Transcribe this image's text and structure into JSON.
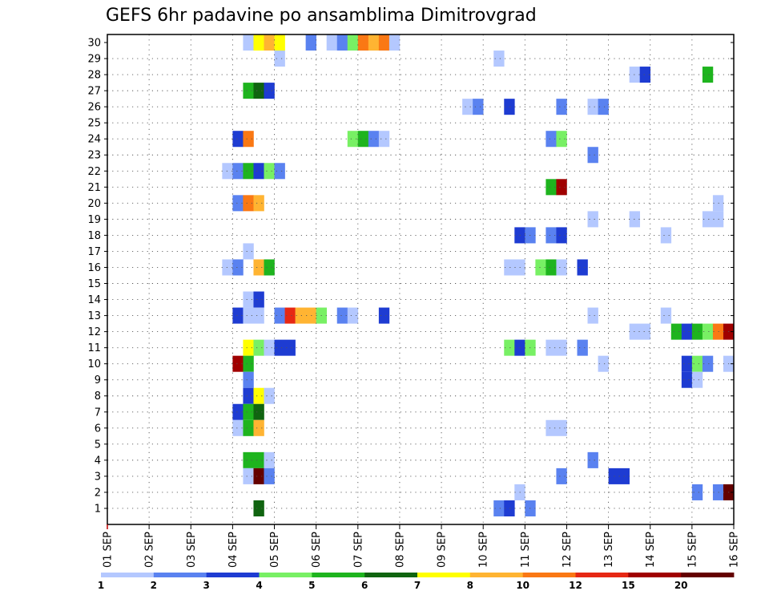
{
  "chart_data": {
    "type": "heatmap",
    "title": "GEFS 6hr padavine po ansamblima Dimitrovgrad",
    "xlabel": "",
    "ylabel": "",
    "x_ticks": [
      "01 SEP",
      "02 SEP",
      "03 SEP",
      "04 SEP",
      "05 SEP",
      "06 SEP",
      "07 SEP",
      "08 SEP",
      "09 SEP",
      "10 SEP",
      "11 SEP",
      "12 SEP",
      "13 SEP",
      "14 SEP",
      "15 SEP",
      "16 SEP"
    ],
    "y_ticks": [
      "1",
      "2",
      "3",
      "4",
      "5",
      "6",
      "7",
      "8",
      "9",
      "10",
      "11",
      "12",
      "13",
      "14",
      "15",
      "16",
      "17",
      "18",
      "19",
      "20",
      "21",
      "22",
      "23",
      "24",
      "25",
      "26",
      "27",
      "28",
      "29",
      "30"
    ],
    "grid": true,
    "legend_placement": "bottom",
    "colorbar": {
      "labels": [
        "1",
        "2",
        "3",
        "4",
        "5",
        "6",
        "7",
        "8",
        "10",
        "12",
        "15",
        "20"
      ],
      "colors": [
        "#b4c8ff",
        "#5a82f0",
        "#1e3cd2",
        "#78f064",
        "#1eb41e",
        "#106410",
        "#ffff00",
        "#ffb432",
        "#fa7814",
        "#e62814",
        "#a00000",
        "#640000"
      ]
    },
    "cells": [
      {
        "ensemble": 30,
        "day": 4.25,
        "days": 1,
        "level": 1
      },
      {
        "ensemble": 30,
        "day": 4.5,
        "days": 1,
        "level": 7
      },
      {
        "ensemble": 30,
        "day": 4.75,
        "days": 1,
        "level": 8
      },
      {
        "ensemble": 30,
        "day": 5.0,
        "days": 1,
        "level": 7
      },
      {
        "ensemble": 30,
        "day": 5.75,
        "days": 1,
        "level": 2
      },
      {
        "ensemble": 30,
        "day": 6.25,
        "days": 1,
        "level": 1
      },
      {
        "ensemble": 30,
        "day": 6.5,
        "days": 1,
        "level": 2
      },
      {
        "ensemble": 30,
        "day": 6.75,
        "days": 1,
        "level": 4
      },
      {
        "ensemble": 30,
        "day": 7.0,
        "days": 1,
        "level": 9
      },
      {
        "ensemble": 30,
        "day": 7.25,
        "days": 1,
        "level": 8
      },
      {
        "ensemble": 30,
        "day": 7.5,
        "days": 1,
        "level": 9
      },
      {
        "ensemble": 30,
        "day": 7.75,
        "days": 1,
        "level": 1
      },
      {
        "ensemble": 29,
        "day": 5.0,
        "days": 1,
        "level": 1
      },
      {
        "ensemble": 29,
        "day": 10.25,
        "days": 1,
        "level": 1
      },
      {
        "ensemble": 28,
        "day": 13.5,
        "days": 1,
        "level": 1
      },
      {
        "ensemble": 28,
        "day": 13.75,
        "days": 1,
        "level": 3
      },
      {
        "ensemble": 28,
        "day": 15.25,
        "days": 1,
        "level": 5
      },
      {
        "ensemble": 27,
        "day": 4.25,
        "days": 1,
        "level": 5
      },
      {
        "ensemble": 27,
        "day": 4.5,
        "days": 1,
        "level": 6
      },
      {
        "ensemble": 27,
        "day": 4.75,
        "days": 1,
        "level": 3
      },
      {
        "ensemble": 26,
        "day": 9.5,
        "days": 1,
        "level": 1
      },
      {
        "ensemble": 26,
        "day": 9.75,
        "days": 1,
        "level": 2
      },
      {
        "ensemble": 26,
        "day": 10.5,
        "days": 1,
        "level": 3
      },
      {
        "ensemble": 26,
        "day": 11.75,
        "days": 1,
        "level": 2
      },
      {
        "ensemble": 26,
        "day": 12.5,
        "days": 1,
        "level": 1
      },
      {
        "ensemble": 26,
        "day": 12.75,
        "days": 1,
        "level": 2
      },
      {
        "ensemble": 24,
        "day": 4.0,
        "days": 1,
        "level": 3
      },
      {
        "ensemble": 24,
        "day": 4.25,
        "days": 1,
        "level": 9
      },
      {
        "ensemble": 24,
        "day": 6.75,
        "days": 1,
        "level": 4
      },
      {
        "ensemble": 24,
        "day": 7.0,
        "days": 1,
        "level": 5
      },
      {
        "ensemble": 24,
        "day": 7.25,
        "days": 1,
        "level": 2
      },
      {
        "ensemble": 24,
        "day": 7.5,
        "days": 1,
        "level": 1
      },
      {
        "ensemble": 24,
        "day": 11.5,
        "days": 1,
        "level": 2
      },
      {
        "ensemble": 24,
        "day": 11.75,
        "days": 1,
        "level": 4
      },
      {
        "ensemble": 23,
        "day": 12.5,
        "days": 1,
        "level": 2
      },
      {
        "ensemble": 22,
        "day": 3.75,
        "days": 1,
        "level": 1
      },
      {
        "ensemble": 22,
        "day": 4.0,
        "days": 1,
        "level": 2
      },
      {
        "ensemble": 22,
        "day": 4.25,
        "days": 1,
        "level": 5
      },
      {
        "ensemble": 22,
        "day": 4.5,
        "days": 1,
        "level": 3
      },
      {
        "ensemble": 22,
        "day": 4.75,
        "days": 1,
        "level": 4
      },
      {
        "ensemble": 22,
        "day": 5.0,
        "days": 1,
        "level": 2
      },
      {
        "ensemble": 21,
        "day": 11.5,
        "days": 1,
        "level": 5
      },
      {
        "ensemble": 21,
        "day": 11.75,
        "days": 1,
        "level": 11
      },
      {
        "ensemble": 20,
        "day": 4.0,
        "days": 1,
        "level": 2
      },
      {
        "ensemble": 20,
        "day": 4.25,
        "days": 1,
        "level": 9
      },
      {
        "ensemble": 20,
        "day": 4.5,
        "days": 1,
        "level": 8
      },
      {
        "ensemble": 20,
        "day": 15.5,
        "days": 1,
        "level": 1
      },
      {
        "ensemble": 19,
        "day": 12.5,
        "days": 1,
        "level": 1
      },
      {
        "ensemble": 19,
        "day": 13.5,
        "days": 1,
        "level": 1
      },
      {
        "ensemble": 19,
        "day": 15.25,
        "days": 2,
        "level": 1
      },
      {
        "ensemble": 18,
        "day": 10.75,
        "days": 1,
        "level": 3
      },
      {
        "ensemble": 18,
        "day": 11.0,
        "days": 1,
        "level": 2
      },
      {
        "ensemble": 18,
        "day": 11.5,
        "days": 1,
        "level": 2
      },
      {
        "ensemble": 18,
        "day": 11.75,
        "days": 1,
        "level": 3
      },
      {
        "ensemble": 18,
        "day": 14.25,
        "days": 1,
        "level": 1
      },
      {
        "ensemble": 17,
        "day": 4.25,
        "days": 1,
        "level": 1
      },
      {
        "ensemble": 16,
        "day": 3.75,
        "days": 1,
        "level": 1
      },
      {
        "ensemble": 16,
        "day": 4.0,
        "days": 1,
        "level": 2
      },
      {
        "ensemble": 16,
        "day": 4.5,
        "days": 1,
        "level": 8
      },
      {
        "ensemble": 16,
        "day": 4.75,
        "days": 1,
        "level": 5
      },
      {
        "ensemble": 16,
        "day": 10.5,
        "days": 2,
        "level": 1
      },
      {
        "ensemble": 16,
        "day": 11.25,
        "days": 1,
        "level": 4
      },
      {
        "ensemble": 16,
        "day": 11.5,
        "days": 1,
        "level": 5
      },
      {
        "ensemble": 16,
        "day": 11.75,
        "days": 1,
        "level": 1
      },
      {
        "ensemble": 16,
        "day": 12.25,
        "days": 1,
        "level": 3
      },
      {
        "ensemble": 14,
        "day": 4.25,
        "days": 1,
        "level": 1
      },
      {
        "ensemble": 14,
        "day": 4.5,
        "days": 1,
        "level": 3
      },
      {
        "ensemble": 13,
        "day": 4.0,
        "days": 1,
        "level": 3
      },
      {
        "ensemble": 13,
        "day": 4.25,
        "days": 2,
        "level": 1
      },
      {
        "ensemble": 13,
        "day": 5.0,
        "days": 1,
        "level": 2
      },
      {
        "ensemble": 13,
        "day": 5.25,
        "days": 1,
        "level": 10
      },
      {
        "ensemble": 13,
        "day": 5.5,
        "days": 2,
        "level": 8
      },
      {
        "ensemble": 13,
        "day": 6.0,
        "days": 1,
        "level": 4
      },
      {
        "ensemble": 13,
        "day": 6.5,
        "days": 1,
        "level": 2
      },
      {
        "ensemble": 13,
        "day": 6.75,
        "days": 1,
        "level": 1
      },
      {
        "ensemble": 13,
        "day": 7.5,
        "days": 1,
        "level": 3
      },
      {
        "ensemble": 13,
        "day": 12.5,
        "days": 1,
        "level": 1
      },
      {
        "ensemble": 13,
        "day": 14.25,
        "days": 1,
        "level": 1
      },
      {
        "ensemble": 12,
        "day": 13.5,
        "days": 2,
        "level": 1
      },
      {
        "ensemble": 12,
        "day": 14.5,
        "days": 1,
        "level": 5
      },
      {
        "ensemble": 12,
        "day": 14.75,
        "days": 1,
        "level": 3
      },
      {
        "ensemble": 12,
        "day": 15.0,
        "days": 1,
        "level": 5
      },
      {
        "ensemble": 12,
        "day": 15.25,
        "days": 1,
        "level": 4
      },
      {
        "ensemble": 12,
        "day": 15.5,
        "days": 1,
        "level": 9
      },
      {
        "ensemble": 12,
        "day": 15.75,
        "days": 1,
        "level": 11
      },
      {
        "ensemble": 11,
        "day": 4.25,
        "days": 1,
        "level": 7
      },
      {
        "ensemble": 11,
        "day": 4.5,
        "days": 1,
        "level": 4
      },
      {
        "ensemble": 11,
        "day": 4.75,
        "days": 1,
        "level": 1
      },
      {
        "ensemble": 11,
        "day": 5.0,
        "days": 2,
        "level": 3
      },
      {
        "ensemble": 11,
        "day": 10.5,
        "days": 1,
        "level": 4
      },
      {
        "ensemble": 11,
        "day": 10.75,
        "days": 1,
        "level": 3
      },
      {
        "ensemble": 11,
        "day": 11.0,
        "days": 1,
        "level": 4
      },
      {
        "ensemble": 11,
        "day": 11.5,
        "days": 2,
        "level": 1
      },
      {
        "ensemble": 11,
        "day": 12.25,
        "days": 1,
        "level": 2
      },
      {
        "ensemble": 10,
        "day": 4.0,
        "days": 1,
        "level": 11
      },
      {
        "ensemble": 10,
        "day": 4.25,
        "days": 1,
        "level": 5
      },
      {
        "ensemble": 10,
        "day": 12.75,
        "days": 1,
        "level": 1
      },
      {
        "ensemble": 10,
        "day": 14.75,
        "days": 1,
        "level": 3
      },
      {
        "ensemble": 10,
        "day": 15.0,
        "days": 1,
        "level": 4
      },
      {
        "ensemble": 10,
        "day": 15.25,
        "days": 1,
        "level": 2
      },
      {
        "ensemble": 10,
        "day": 15.75,
        "days": 1,
        "level": 1
      },
      {
        "ensemble": 9,
        "day": 4.25,
        "days": 1,
        "level": 2
      },
      {
        "ensemble": 9,
        "day": 14.75,
        "days": 1,
        "level": 3
      },
      {
        "ensemble": 9,
        "day": 15.0,
        "days": 1,
        "level": 1
      },
      {
        "ensemble": 8,
        "day": 4.25,
        "days": 1,
        "level": 3
      },
      {
        "ensemble": 8,
        "day": 4.5,
        "days": 1,
        "level": 7
      },
      {
        "ensemble": 8,
        "day": 4.75,
        "days": 1,
        "level": 1
      },
      {
        "ensemble": 7,
        "day": 4.0,
        "days": 1,
        "level": 3
      },
      {
        "ensemble": 7,
        "day": 4.25,
        "days": 1,
        "level": 5
      },
      {
        "ensemble": 7,
        "day": 4.5,
        "days": 1,
        "level": 6
      },
      {
        "ensemble": 6,
        "day": 4.0,
        "days": 1,
        "level": 1
      },
      {
        "ensemble": 6,
        "day": 4.25,
        "days": 1,
        "level": 5
      },
      {
        "ensemble": 6,
        "day": 4.5,
        "days": 1,
        "level": 8
      },
      {
        "ensemble": 6,
        "day": 11.5,
        "days": 2,
        "level": 1
      },
      {
        "ensemble": 4,
        "day": 4.25,
        "days": 2,
        "level": 5
      },
      {
        "ensemble": 4,
        "day": 4.75,
        "days": 1,
        "level": 1
      },
      {
        "ensemble": 4,
        "day": 12.5,
        "days": 1,
        "level": 2
      },
      {
        "ensemble": 3,
        "day": 4.25,
        "days": 1,
        "level": 1
      },
      {
        "ensemble": 3,
        "day": 4.5,
        "days": 1,
        "level": 12
      },
      {
        "ensemble": 3,
        "day": 4.75,
        "days": 1,
        "level": 2
      },
      {
        "ensemble": 3,
        "day": 11.75,
        "days": 1,
        "level": 2
      },
      {
        "ensemble": 3,
        "day": 13.0,
        "days": 2,
        "level": 3
      },
      {
        "ensemble": 2,
        "day": 10.75,
        "days": 1,
        "level": 1
      },
      {
        "ensemble": 2,
        "day": 15.0,
        "days": 1,
        "level": 2
      },
      {
        "ensemble": 2,
        "day": 15.5,
        "days": 1,
        "level": 2
      },
      {
        "ensemble": 2,
        "day": 15.75,
        "days": 1,
        "level": 12
      },
      {
        "ensemble": 1,
        "day": 4.5,
        "days": 1,
        "level": 6
      },
      {
        "ensemble": 1,
        "day": 10.25,
        "days": 1,
        "level": 2
      },
      {
        "ensemble": 1,
        "day": 10.5,
        "days": 1,
        "level": 3
      },
      {
        "ensemble": 1,
        "day": 11.0,
        "days": 1,
        "level": 2
      }
    ]
  }
}
